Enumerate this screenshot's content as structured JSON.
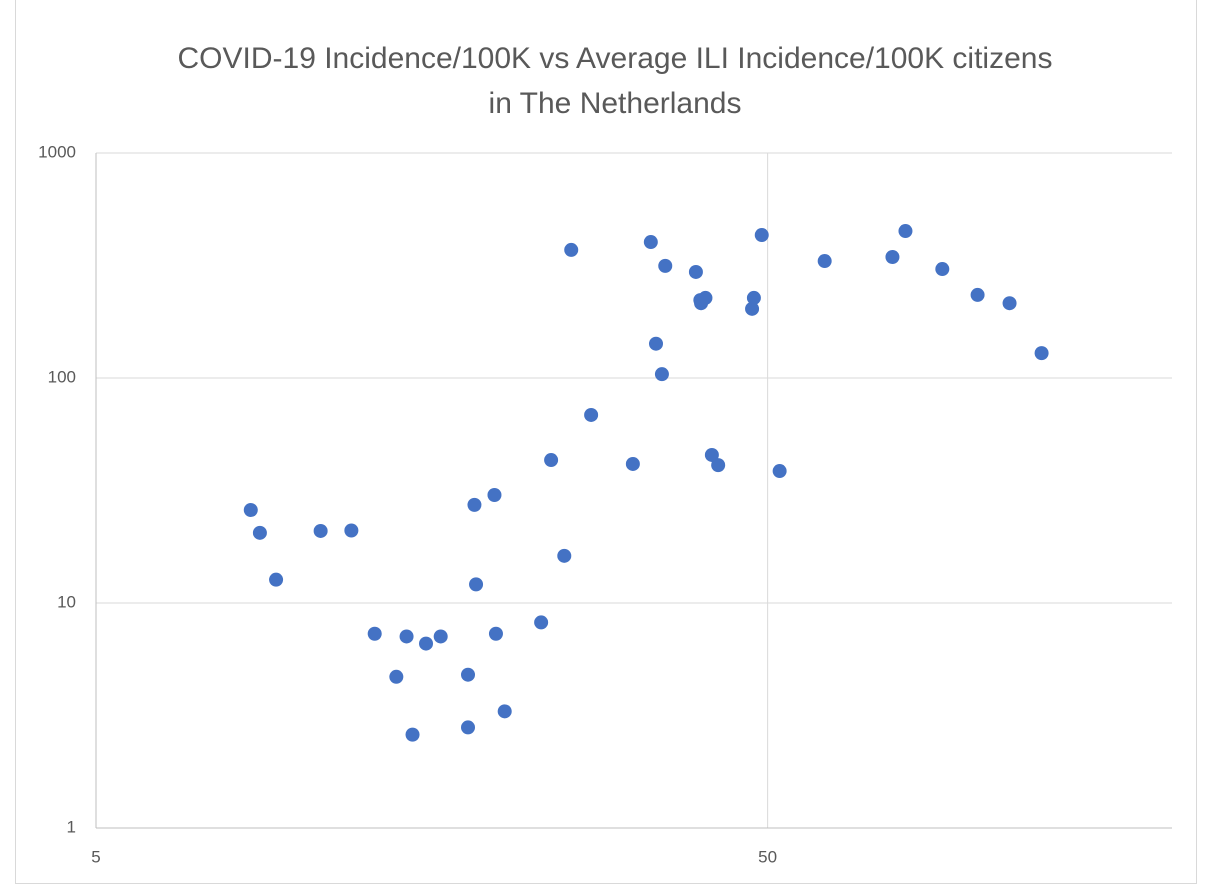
{
  "chart_data": {
    "type": "scatter",
    "title": "COVID-19 Incidence/100K vs Average ILI Incidence/100K citizens in The Netherlands",
    "x_scale": "log",
    "y_scale": "log",
    "grid": true,
    "xlim": [
      5,
      200
    ],
    "ylim": [
      1,
      1000
    ],
    "xticks": [
      5,
      50
    ],
    "yticks": [
      1,
      10,
      100,
      1000
    ],
    "series": [
      {
        "color": "#4472c4",
        "x": [
          8.5,
          8.77,
          9.27,
          10.8,
          12.0,
          13.0,
          14.0,
          14.5,
          14.8,
          15.5,
          16.3,
          17.9,
          17.9,
          18.3,
          18.4,
          19.6,
          19.7,
          20.3,
          23.0,
          23.8,
          24.9,
          25.5,
          27.3,
          31.5,
          33.5,
          34.1,
          34.8,
          35.2,
          39.1,
          39.7,
          39.8,
          40.4,
          41.3,
          42.2,
          47.4,
          47.7,
          49.0,
          52.1,
          60.8,
          76.7,
          80.2,
          91.0,
          102.7,
          114.6,
          127.9
        ],
        "values": [
          25.9,
          20.5,
          12.7,
          20.9,
          21,
          7.3,
          4.7,
          7.1,
          2.6,
          6.6,
          7.1,
          4.8,
          2.8,
          27.3,
          12.1,
          30.2,
          7.3,
          3.3,
          8.2,
          43.2,
          16.2,
          371,
          68.5,
          41.5,
          402,
          142,
          104,
          315,
          296,
          222,
          215,
          227,
          45.5,
          41,
          203,
          227,
          432,
          38.6,
          331,
          345,
          450,
          305,
          234,
          215,
          129
        ]
      }
    ]
  }
}
